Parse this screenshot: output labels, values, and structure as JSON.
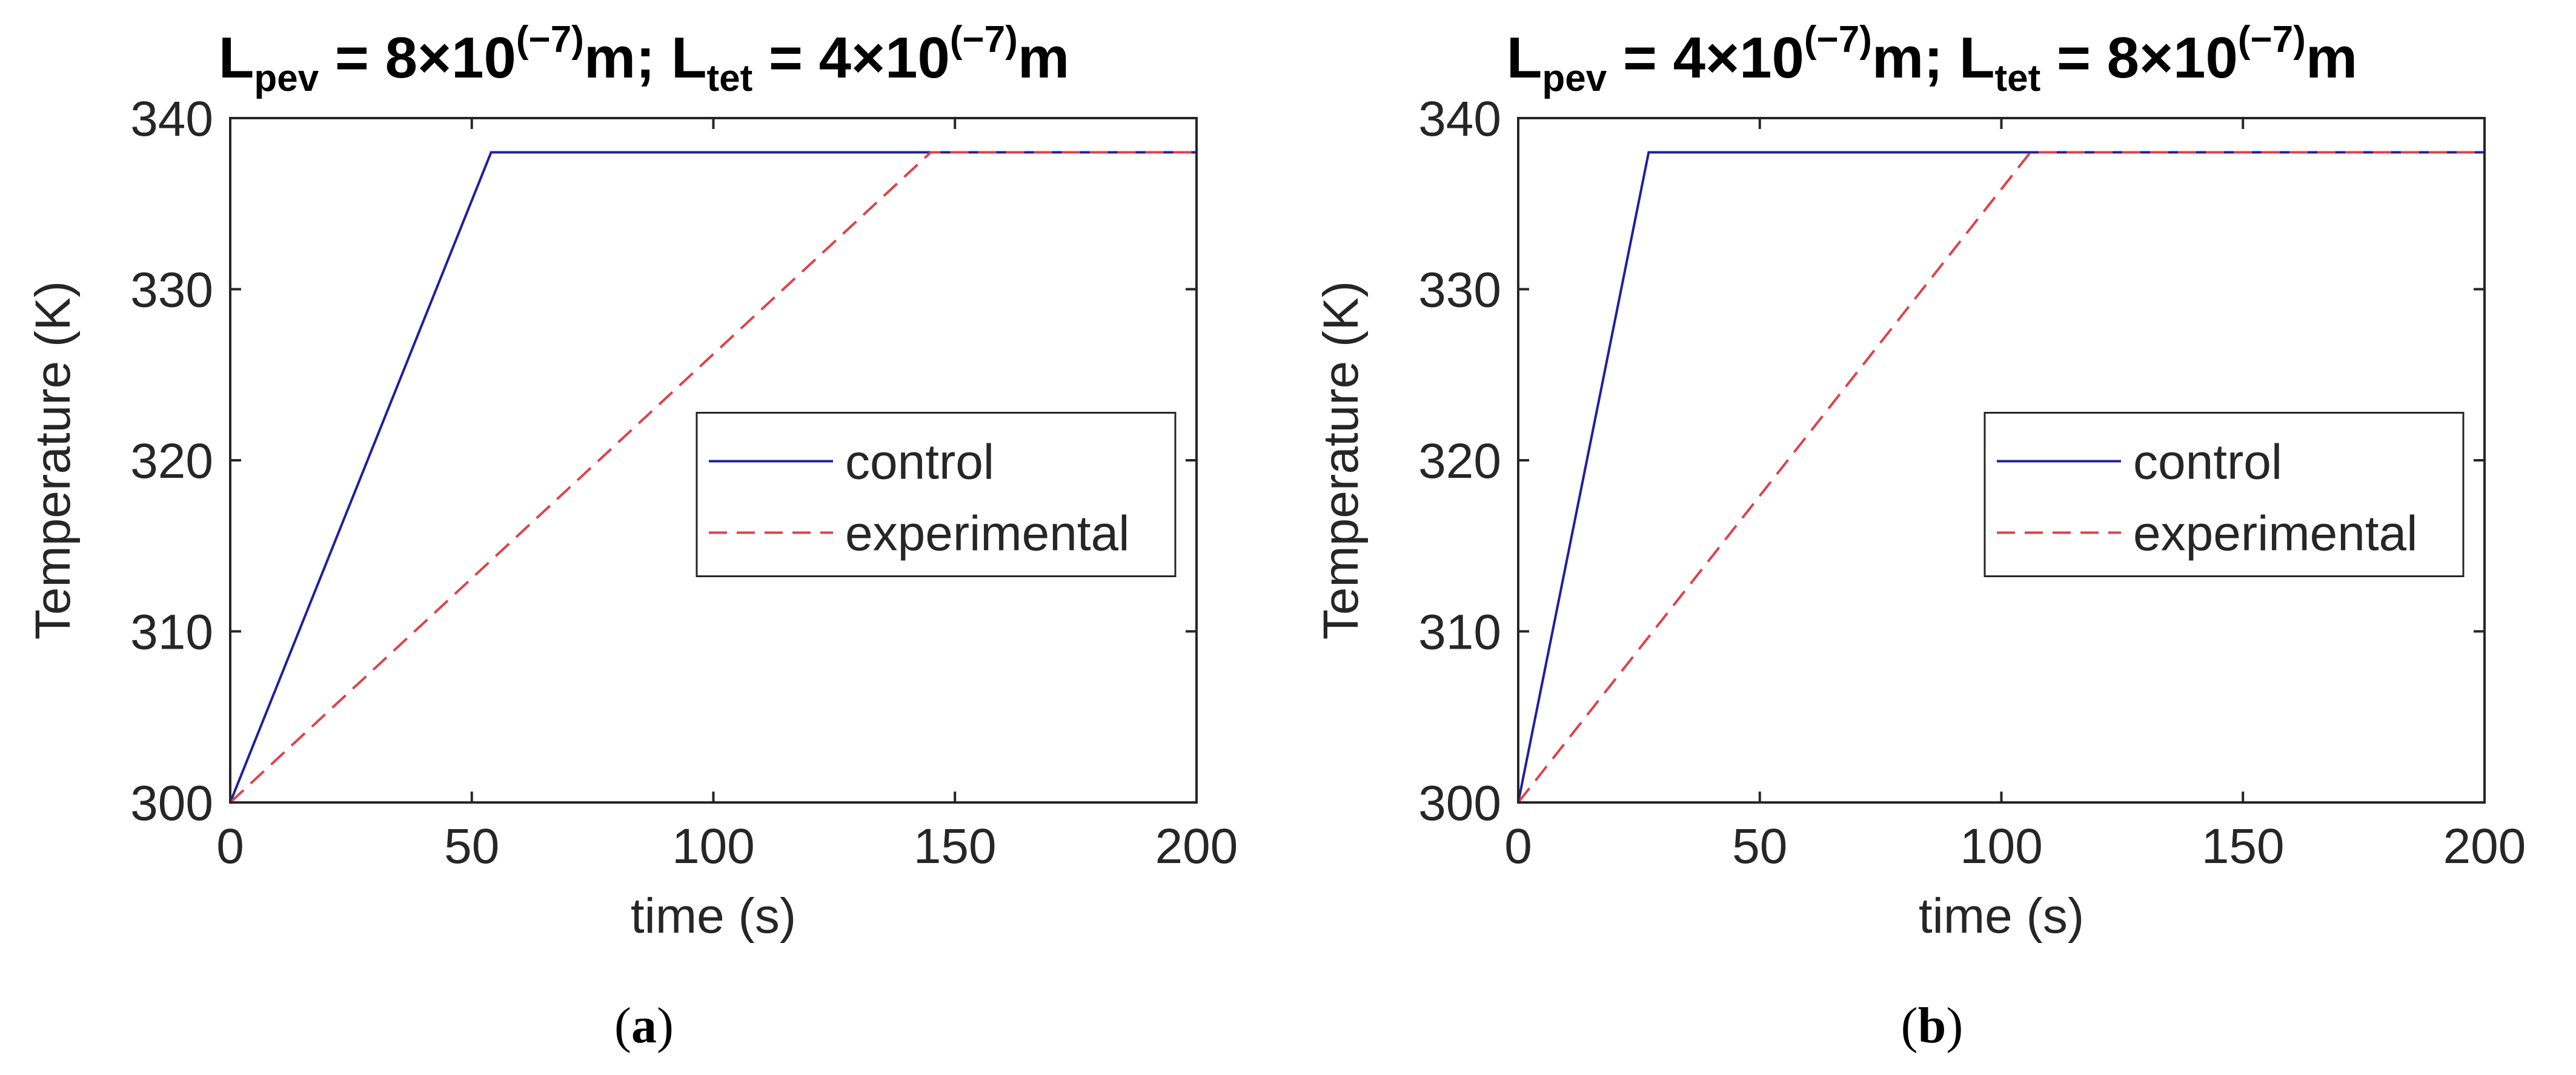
{
  "chart_data": [
    {
      "type": "line",
      "panel": "a",
      "title": {
        "part1": "L",
        "sub1": "pev",
        "mid1": " = 8×10",
        "sup1": "(−7)",
        "mid2": "m; L",
        "sub2": "tet",
        "mid3": " = 4×10",
        "sup2": "(−7)",
        "end": "m"
      },
      "xlabel": "time (s)",
      "ylabel": "Temperature (K)",
      "xlim": [
        0,
        200
      ],
      "ylim": [
        300,
        340
      ],
      "xticks": [
        0,
        50,
        100,
        150,
        200
      ],
      "yticks": [
        300,
        310,
        320,
        330,
        340
      ],
      "series": [
        {
          "name": "control",
          "style": "solid",
          "color": "#1f1f9f",
          "x": [
            0,
            54,
            200
          ],
          "y": [
            300,
            338,
            338
          ]
        },
        {
          "name": "experimental",
          "style": "dashed",
          "color": "#e0404a",
          "x": [
            0,
            145,
            200
          ],
          "y": [
            300,
            338,
            338
          ]
        }
      ],
      "legend": "center-right",
      "caption": {
        "open": "(",
        "letter": "a",
        "close": ")"
      }
    },
    {
      "type": "line",
      "panel": "b",
      "title": {
        "part1": "L",
        "sub1": "pev",
        "mid1": " = 4×10",
        "sup1": "(−7)",
        "mid2": "m; L",
        "sub2": "tet",
        "mid3": " = 8×10",
        "sup2": "(−7)",
        "end": "m"
      },
      "xlabel": "time (s)",
      "ylabel": "Temperature (K)",
      "xlim": [
        0,
        200
      ],
      "ylim": [
        300,
        340
      ],
      "xticks": [
        0,
        50,
        100,
        150,
        200
      ],
      "yticks": [
        300,
        310,
        320,
        330,
        340
      ],
      "series": [
        {
          "name": "control",
          "style": "solid",
          "color": "#1f1f9f",
          "x": [
            0,
            27,
            200
          ],
          "y": [
            300,
            338,
            338
          ]
        },
        {
          "name": "experimental",
          "style": "dashed",
          "color": "#e0404a",
          "x": [
            0,
            106,
            200
          ],
          "y": [
            300,
            338,
            338
          ]
        }
      ],
      "legend": "center-right",
      "caption": {
        "open": "(",
        "letter": "b",
        "close": ")"
      }
    }
  ]
}
